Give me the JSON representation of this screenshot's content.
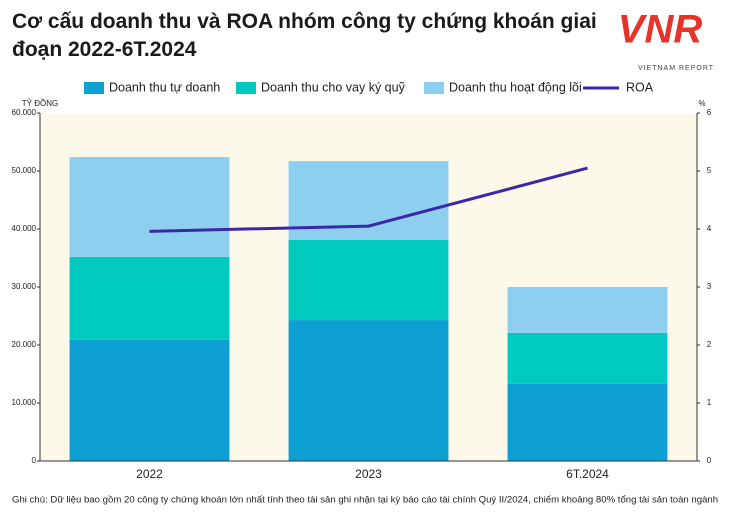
{
  "logo": {
    "text": "VNR",
    "caption": "VIETNAM REPORT"
  },
  "chart_data": {
    "type": "bar",
    "stacked": true,
    "title": "Cơ cấu doanh thu và ROA nhóm công ty chứng khoán giai đoạn 2022-6T.2024",
    "categories": [
      "2022",
      "2023",
      "6T.2024"
    ],
    "series": [
      {
        "name": "Doanh thu tự doanh",
        "color": "#0ea0d2",
        "values": [
          20900,
          24300,
          13300
        ]
      },
      {
        "name": "Doanh thu cho vay ký quỹ",
        "color": "#00c9c0",
        "values": [
          14300,
          13800,
          8800
        ]
      },
      {
        "name": "Doanh thu hoạt động lõi",
        "color": "#8ecff0",
        "values": [
          17200,
          13600,
          7900
        ]
      },
      {
        "name": "ROA",
        "type": "line",
        "axis": "y2",
        "color": "#3a28a8",
        "values": [
          3.96,
          4.05,
          5.05
        ]
      }
    ],
    "ylabel": "TỶ ĐỒNG",
    "y2label": "%",
    "ylim": [
      0,
      60000
    ],
    "yticks": [
      0,
      {
        "value": 10000,
        "label": "10.000"
      },
      {
        "value": 20000,
        "label": "20.000"
      },
      {
        "value": 30000,
        "label": "30.000"
      },
      {
        "value": 40000,
        "label": "40.000"
      },
      {
        "value": 50000,
        "label": "50.000"
      },
      {
        "value": 60000,
        "label": "60.000"
      }
    ],
    "y2lim": [
      0,
      6
    ],
    "y2ticks": [
      0,
      1,
      2,
      3,
      4,
      5,
      6
    ],
    "grid": false,
    "legend": "top",
    "note": "Ghi chú: Dữ liệu bao gồm 20 công ty chứng khoán lớn nhất tính theo tài sản ghi nhận tại kỳ báo cáo tài chính Quý II/2024, chiếm khoảng 80% tổng tài sản toàn ngành"
  }
}
